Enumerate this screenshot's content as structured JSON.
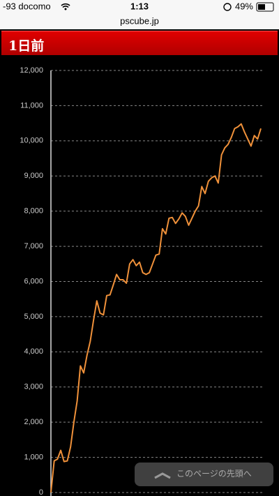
{
  "status_bar": {
    "carrier": "-93 docomo",
    "time": "1:13",
    "battery": "49%",
    "url": "pscube.jp"
  },
  "header": {
    "title": "1日前"
  },
  "chart_data": {
    "type": "line",
    "color": "#f0913a",
    "grid": true,
    "ylim": [
      0,
      12000
    ],
    "yticks": [
      0,
      {
        "value": 1000,
        "label": "1,000"
      },
      {
        "value": 2000,
        "label": "2,000"
      },
      {
        "value": 3000,
        "label": "3,000"
      },
      {
        "value": 4000,
        "label": "4,000"
      },
      {
        "value": 5000,
        "label": "5,000"
      },
      {
        "value": 6000,
        "label": "6,000"
      },
      {
        "value": 7000,
        "label": "7,000"
      },
      {
        "value": 8000,
        "label": "8,000"
      },
      {
        "value": 9000,
        "label": "9,000"
      },
      {
        "value": 10000,
        "label": "10,000"
      },
      {
        "value": 11000,
        "label": "11,000"
      },
      {
        "value": 12000,
        "label": "12,000"
      }
    ],
    "values": [
      0,
      900,
      950,
      1200,
      880,
      900,
      1300,
      2000,
      2600,
      3600,
      3400,
      3900,
      4300,
      4900,
      5450,
      5100,
      5050,
      5600,
      5620,
      5900,
      6200,
      6050,
      6050,
      5950,
      6500,
      6620,
      6450,
      6550,
      6250,
      6200,
      6250,
      6500,
      6750,
      6780,
      7500,
      7350,
      7800,
      7820,
      7650,
      7780,
      7950,
      7850,
      7600,
      7800,
      8000,
      8150,
      8700,
      8500,
      8850,
      8950,
      9000,
      8800,
      9600,
      9800,
      9900,
      10100,
      10350,
      10400,
      10480,
      10250,
      10050,
      9850,
      10150,
      10050,
      10350
    ]
  },
  "button": {
    "label": "このページの先頭へ"
  }
}
